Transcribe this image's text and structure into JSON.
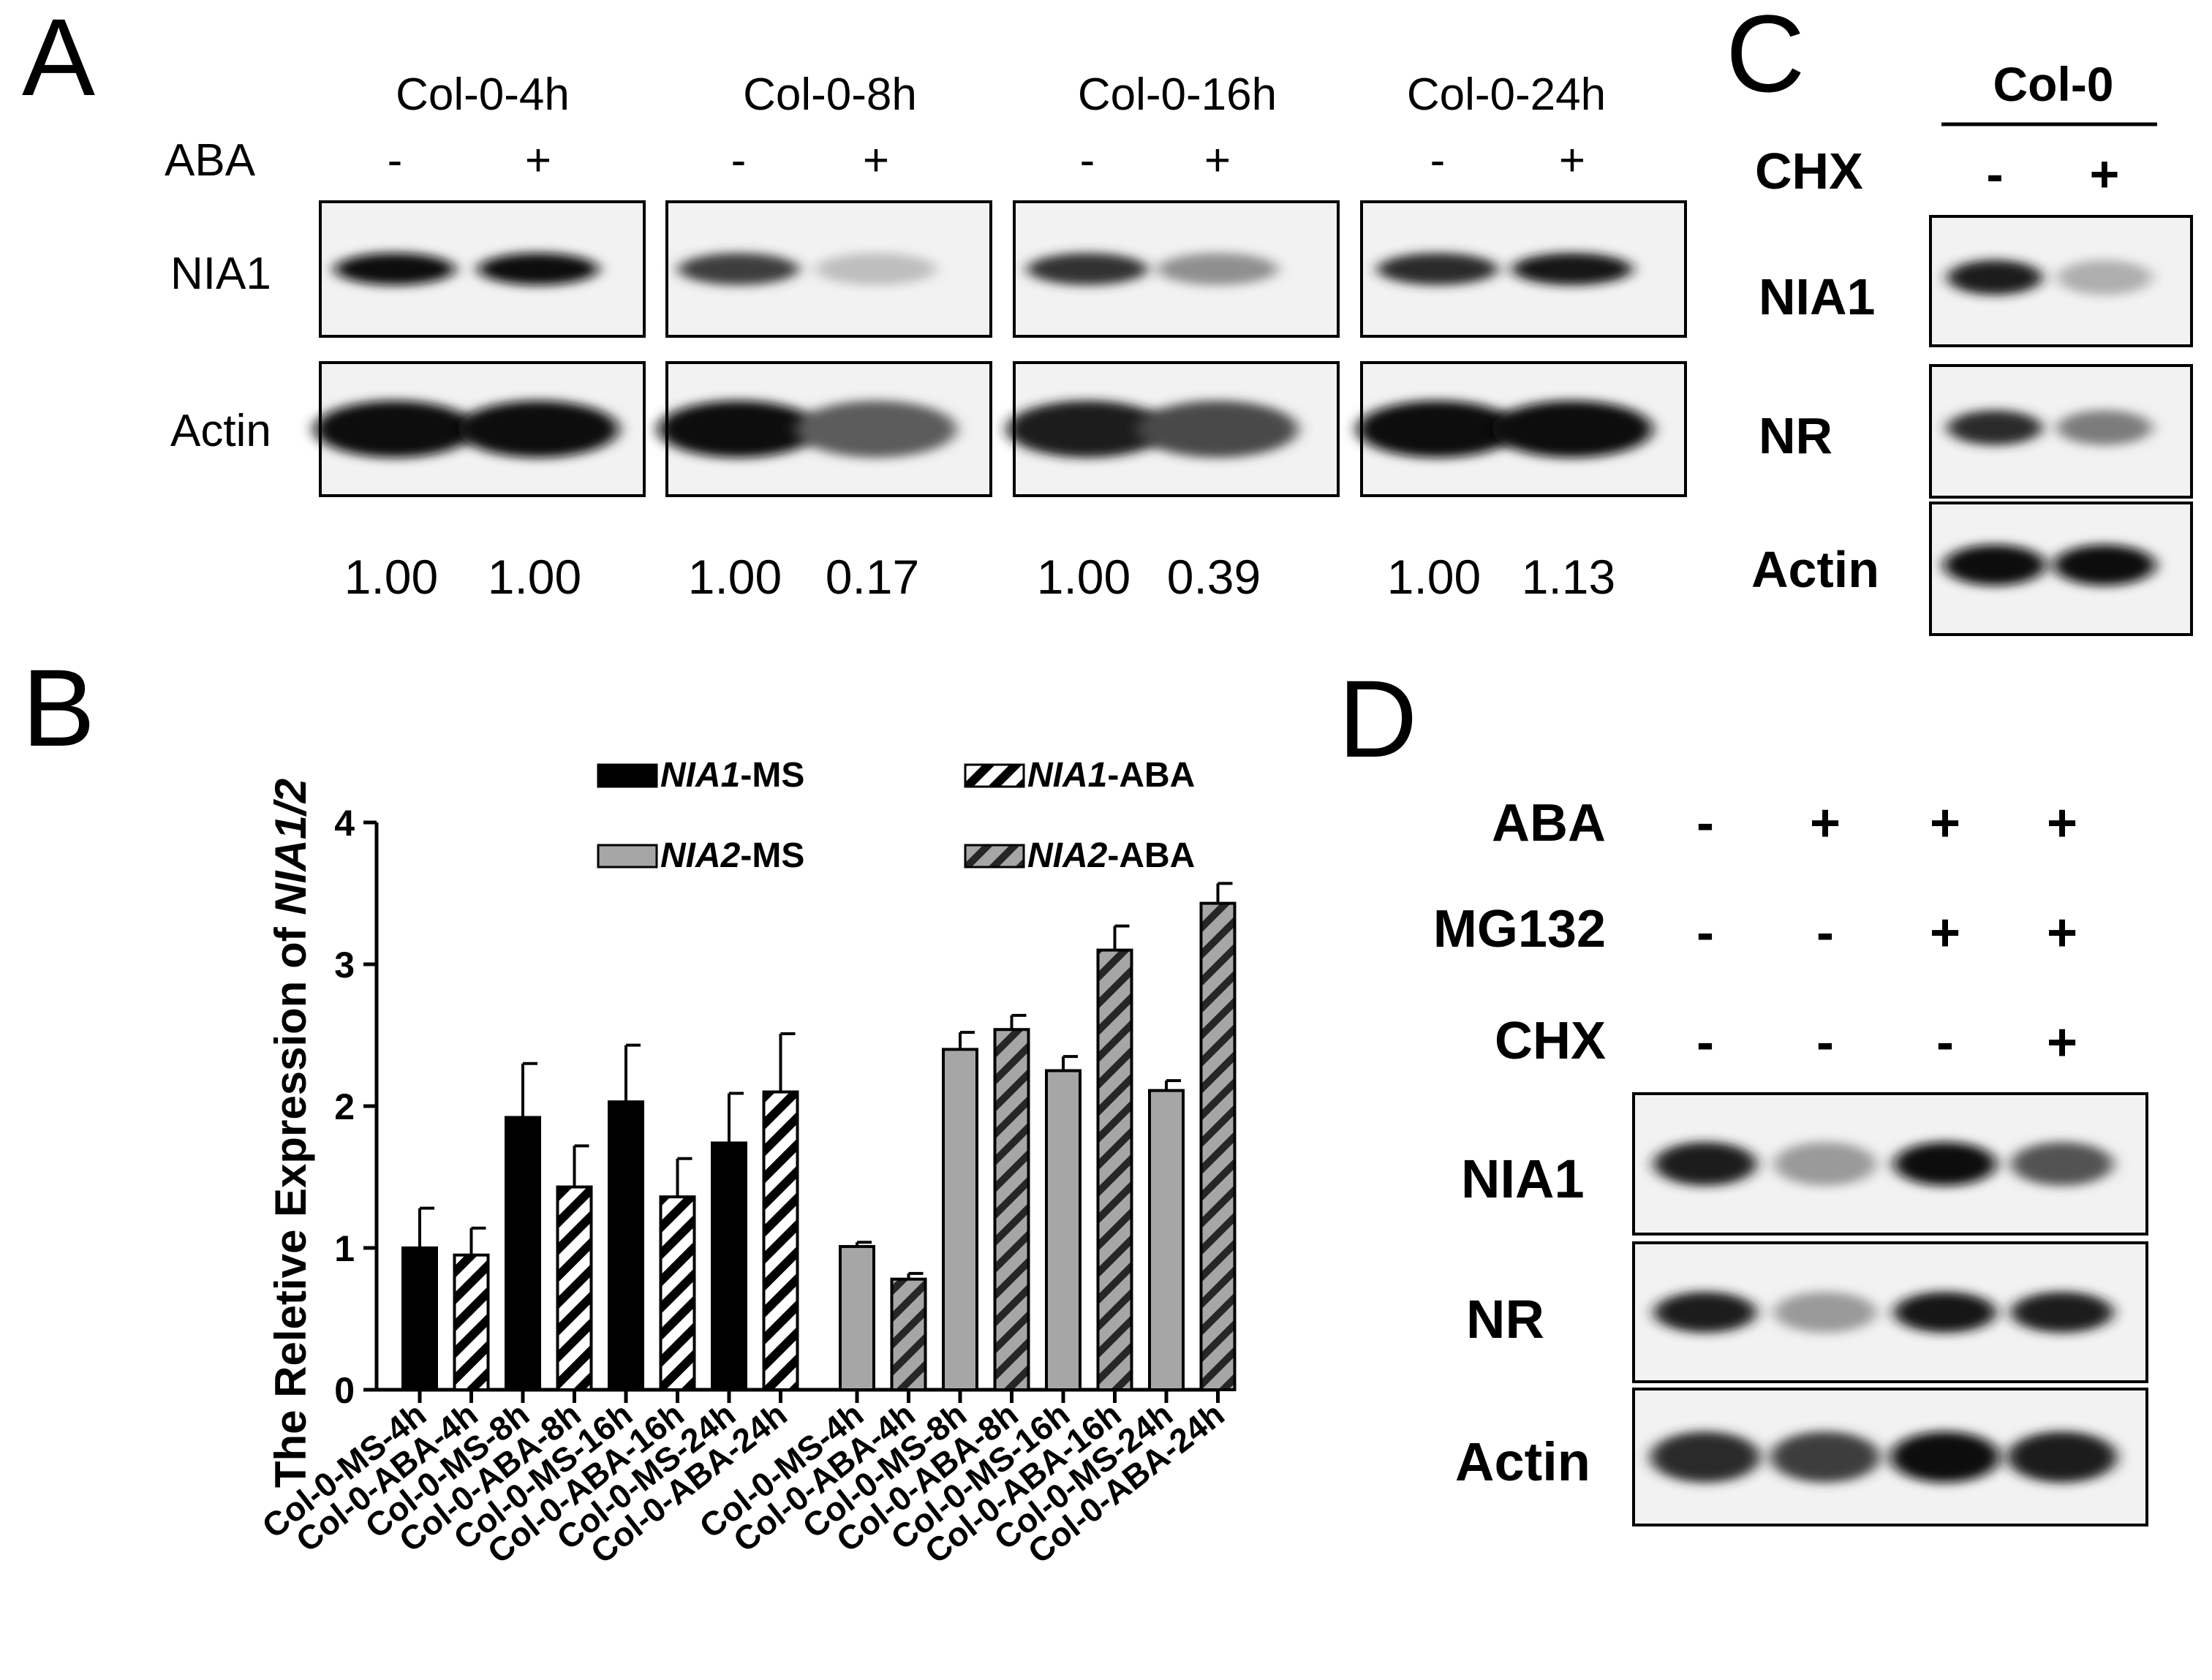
{
  "panel_a": {
    "letter": "A",
    "groups": [
      "Col-0-4h",
      "Col-0-8h",
      "Col-0-16h",
      "Col-0-24h"
    ],
    "treatment_label": "ABA",
    "treatment_signs": [
      "-",
      "+",
      "-",
      "+",
      "-",
      "+",
      "-",
      "+"
    ],
    "rows": [
      "NIA1",
      "Actin"
    ],
    "quant": [
      "1.00",
      "1.00",
      "1.00",
      "0.17",
      "1.00",
      "0.39",
      "1.00",
      "1.13"
    ],
    "nia1_intensity": [
      1.0,
      1.0,
      0.75,
      0.12,
      0.8,
      0.35,
      0.85,
      0.95
    ],
    "actin_intensity": [
      1.0,
      1.0,
      1.0,
      0.6,
      0.9,
      0.7,
      1.0,
      1.0
    ]
  },
  "panel_c": {
    "letter": "C",
    "header": "Col-0",
    "treatment_label": "CHX",
    "signs": [
      "-",
      "+"
    ],
    "rows": [
      "NIA1",
      "NR",
      "Actin"
    ],
    "intensity": [
      [
        0.9,
        0.2
      ],
      [
        0.85,
        0.45
      ],
      [
        1.0,
        1.0
      ]
    ]
  },
  "panel_d": {
    "letter": "D",
    "treatments": [
      {
        "label": "ABA",
        "signs": [
          "-",
          "+",
          "+",
          "+"
        ]
      },
      {
        "label": "MG132",
        "signs": [
          "-",
          "-",
          "+",
          "+"
        ]
      },
      {
        "label": "CHX",
        "signs": [
          "-",
          "-",
          "-",
          "+"
        ]
      }
    ],
    "rows": [
      "NIA1",
      "NR",
      "Actin"
    ],
    "intensity": [
      [
        0.9,
        0.3,
        1.0,
        0.65
      ],
      [
        0.9,
        0.3,
        0.95,
        0.9
      ],
      [
        0.85,
        0.75,
        1.0,
        0.9
      ]
    ]
  },
  "panel_b": {
    "letter": "B",
    "legend": [
      {
        "gene": "NIA1",
        "suffix": "-MS",
        "style": "solid-black"
      },
      {
        "gene": "NIA1",
        "suffix": "-ABA",
        "style": "hatch-white"
      },
      {
        "gene": "NIA2",
        "suffix": "-MS",
        "style": "solid-gray"
      },
      {
        "gene": "NIA2",
        "suffix": "-ABA",
        "style": "hatch-gray"
      }
    ],
    "ylabel_prefix": "The Reletive Expression of ",
    "ylabel_gene": "NIA1/2",
    "colors": {
      "black": "#000000",
      "gray": "#a6a6a6",
      "white": "#ffffff"
    }
  },
  "chart_data": {
    "type": "bar",
    "ylabel": "The Reletive Expression of NIA1/2",
    "ylim": [
      0,
      4
    ],
    "yticks": [
      0,
      1,
      2,
      3,
      4
    ],
    "categories": [
      "Col-0-MS-4h",
      "Col-0-ABA-4h",
      "Col-0-MS-8h",
      "Col-0-ABA-8h",
      "Col-0-MS-16h",
      "Col-0-ABA-16h",
      "Col-0-MS-24h",
      "Col-0-ABA-24h"
    ],
    "series": [
      {
        "name": "NIA1",
        "values": [
          1.0,
          0.95,
          1.92,
          1.43,
          2.03,
          1.36,
          1.74,
          2.1
        ],
        "errors": [
          0.28,
          0.19,
          0.38,
          0.29,
          0.4,
          0.27,
          0.35,
          0.41
        ],
        "treatment": [
          "MS",
          "ABA",
          "MS",
          "ABA",
          "MS",
          "ABA",
          "MS",
          "ABA"
        ]
      },
      {
        "name": "NIA2",
        "values": [
          1.01,
          0.78,
          2.4,
          2.54,
          2.25,
          3.1,
          2.11,
          3.43
        ],
        "errors": [
          0.03,
          0.04,
          0.12,
          0.1,
          0.1,
          0.17,
          0.07,
          0.14
        ],
        "treatment": [
          "MS",
          "ABA",
          "MS",
          "ABA",
          "MS",
          "ABA",
          "MS",
          "ABA"
        ]
      }
    ],
    "legend_position": "top"
  }
}
